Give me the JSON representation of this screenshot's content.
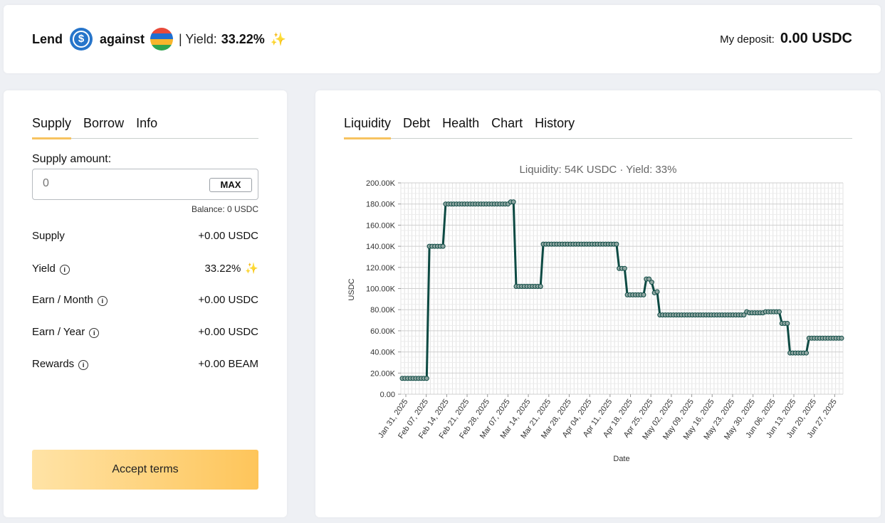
{
  "header": {
    "lend_label": "Lend",
    "against_label": "against",
    "yield_prefix": "| Yield:",
    "yield_value": "33.22%",
    "deposit_label": "My deposit:",
    "deposit_value": "0.00 USDC",
    "usdc_color": "#2775ca",
    "beam_colors": [
      "#e84a3a",
      "#1f6fd1",
      "#f7b52c",
      "#2ea44f"
    ]
  },
  "left": {
    "tabs": [
      {
        "label": "Supply"
      },
      {
        "label": "Borrow"
      },
      {
        "label": "Info"
      }
    ],
    "supply_label": "Supply amount:",
    "input_placeholder": "0",
    "max_label": "MAX",
    "balance": "Balance: 0 USDC",
    "rows": {
      "supply": {
        "label": "Supply",
        "value": "+0.00 USDC"
      },
      "yield": {
        "label": "Yield",
        "value": "33.22%"
      },
      "earn_month": {
        "label": "Earn / Month",
        "value": "+0.00 USDC"
      },
      "earn_year": {
        "label": "Earn / Year",
        "value": "+0.00 USDC"
      },
      "rewards": {
        "label": "Rewards",
        "value": "+0.00 BEAM"
      }
    },
    "accept_label": "Accept terms"
  },
  "right": {
    "tabs": [
      {
        "label": "Liquidity"
      },
      {
        "label": "Debt"
      },
      {
        "label": "Health"
      },
      {
        "label": "Chart"
      },
      {
        "label": "History"
      }
    ]
  },
  "chart_data": {
    "type": "line",
    "title": "Liquidity: 54K USDC · Yield: 33%",
    "xlabel": "Date",
    "ylabel": "USDC",
    "ylim": [
      0,
      200000
    ],
    "y_ticks": [
      "0.00",
      "20.00K",
      "40.00K",
      "60.00K",
      "80.00K",
      "100.00K",
      "120.00K",
      "140.00K",
      "160.00K",
      "180.00K",
      "200.00K"
    ],
    "x_ticks": [
      "Jan 31, 2025",
      "Feb 07, 2025",
      "Feb 14, 2025",
      "Feb 21, 2025",
      "Feb 28, 2025",
      "Mar 07, 2025",
      "Mar 14, 2025",
      "Mar 21, 2025",
      "Mar 28, 2025",
      "Apr 04, 2025",
      "Apr 11, 2025",
      "Apr 18, 2025",
      "Apr 25, 2025",
      "May 02, 2025",
      "May 09, 2025",
      "May 16, 2025",
      "May 23, 2025",
      "May 30, 2025",
      "Jun 06, 2025",
      "Jun 13, 2025",
      "Jun 20, 2025",
      "Jun 27, 2025"
    ],
    "grid": true,
    "line_color": "#0d4a43",
    "series": [
      {
        "values": [
          15000,
          15000,
          15000,
          15000,
          15000,
          15000,
          15000,
          15000,
          15000,
          15000,
          140000,
          140000,
          140000,
          140000,
          140000,
          140000,
          180000,
          180000,
          180000,
          180000,
          180000,
          180000,
          180000,
          180000,
          180000,
          180000,
          180000,
          180000,
          180000,
          180000,
          180000,
          180000,
          180000,
          180000,
          180000,
          180000,
          180000,
          180000,
          180000,
          180000,
          182000,
          182000,
          102000,
          102000,
          102000,
          102000,
          102000,
          102000,
          102000,
          102000,
          102000,
          102000,
          142000,
          142000,
          142000,
          142000,
          142000,
          142000,
          142000,
          142000,
          142000,
          142000,
          142000,
          142000,
          142000,
          142000,
          142000,
          142000,
          142000,
          142000,
          142000,
          142000,
          142000,
          142000,
          142000,
          142000,
          142000,
          142000,
          142000,
          142000,
          119000,
          119000,
          119000,
          94000,
          94000,
          94000,
          94000,
          94000,
          94000,
          94000,
          109000,
          109000,
          106000,
          96000,
          97000,
          75000,
          75000,
          75000,
          75000,
          75000,
          75000,
          75000,
          75000,
          75000,
          75000,
          75000,
          75000,
          75000,
          75000,
          75000,
          75000,
          75000,
          75000,
          75000,
          75000,
          75000,
          75000,
          75000,
          75000,
          75000,
          75000,
          75000,
          75000,
          75000,
          75000,
          75000,
          75000,
          78000,
          77000,
          77000,
          77000,
          77000,
          77000,
          77000,
          78000,
          78000,
          78000,
          78000,
          78000,
          78000,
          67000,
          67000,
          67000,
          39000,
          39000,
          39000,
          39000,
          39000,
          39000,
          39000,
          53000,
          53000,
          53000,
          53000,
          53000,
          53000,
          53000,
          53000,
          53000,
          53000,
          53000,
          53000,
          53000
        ]
      }
    ]
  }
}
